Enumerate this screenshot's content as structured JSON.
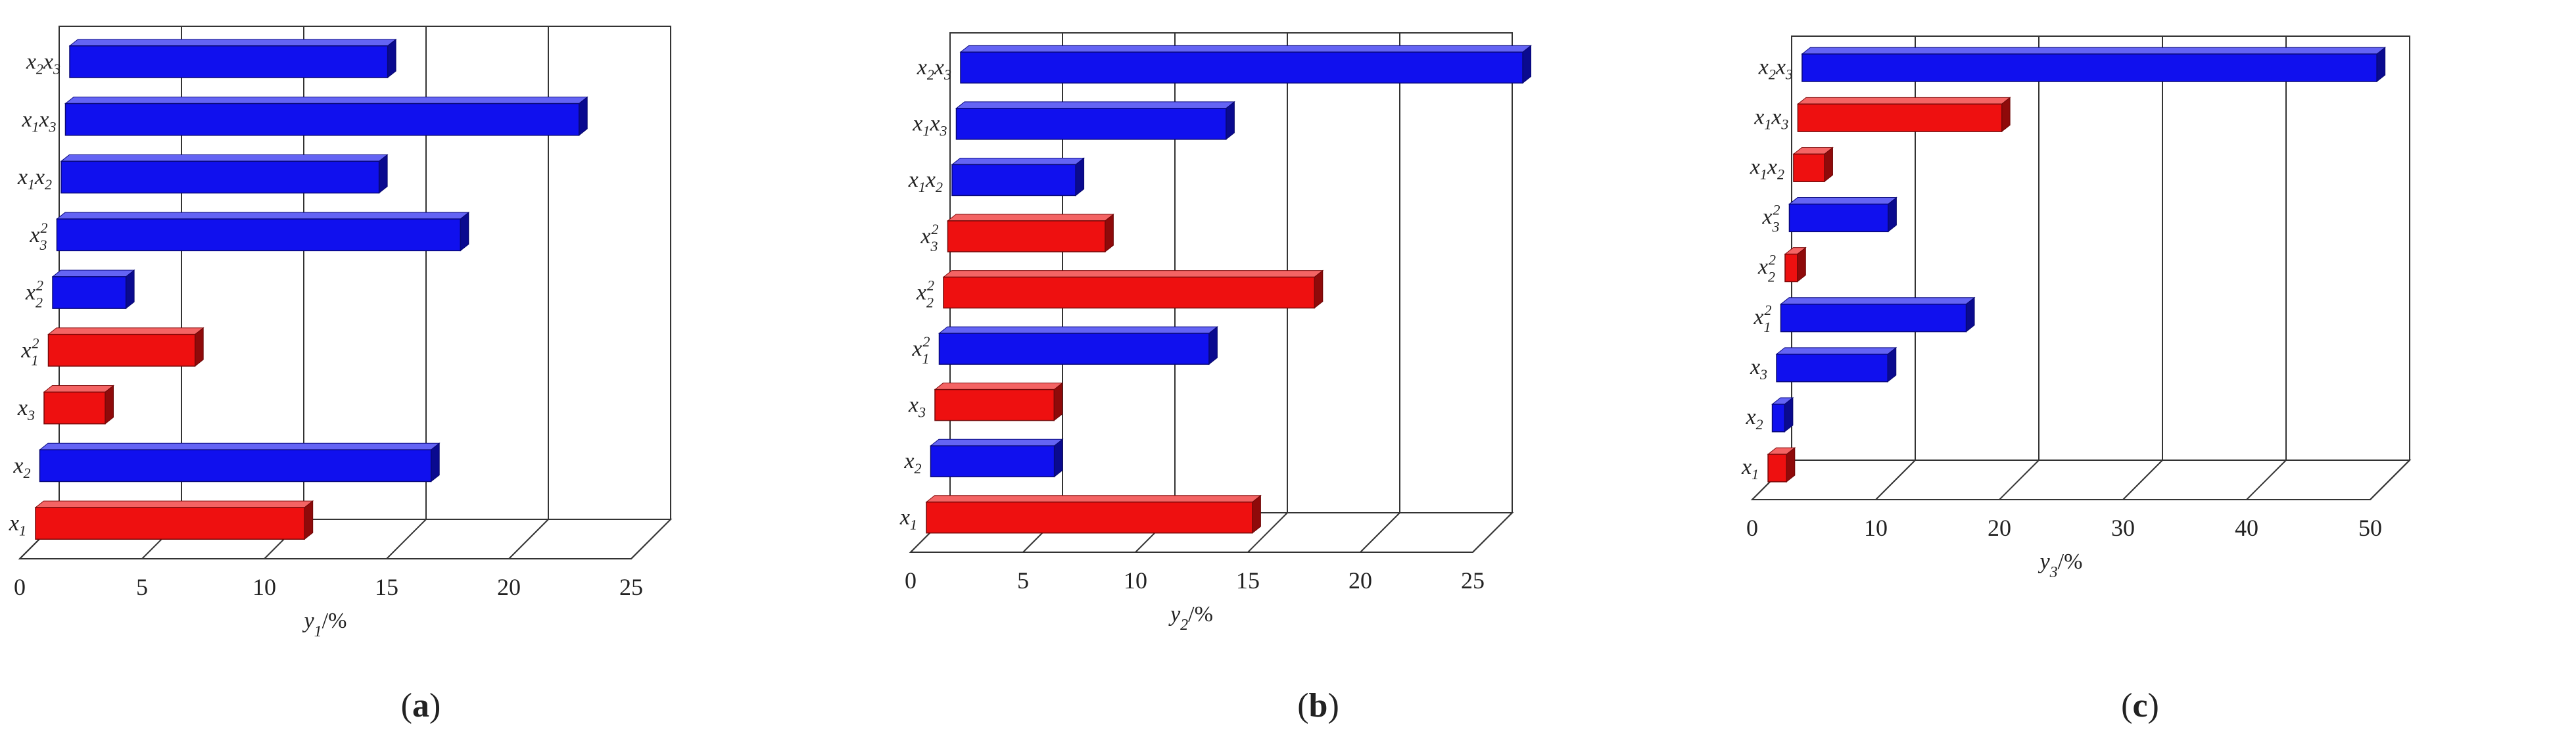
{
  "colors": {
    "blue": "#1010ee",
    "red": "#ee1010"
  },
  "chart_data": [
    {
      "type": "bar",
      "orientation": "horizontal",
      "caption": "(a)",
      "caption_letter": "a",
      "xlabel": "y1/%",
      "xlabel_parts": {
        "var": "y",
        "sub": "1",
        "unit": "/%"
      },
      "xlim": [
        0,
        25
      ],
      "xticks": [
        "0",
        "5",
        "10",
        "15",
        "20",
        "25"
      ],
      "grid": true,
      "categories": [
        {
          "base": "x",
          "sub": "1",
          "sup": "",
          "tail": "",
          "value": 11,
          "color": "red"
        },
        {
          "base": "x",
          "sub": "2",
          "sup": "",
          "tail": "",
          "value": 16,
          "color": "blue"
        },
        {
          "base": "x",
          "sub": "3",
          "sup": "",
          "tail": "",
          "value": 2.5,
          "color": "red"
        },
        {
          "base": "x",
          "sub": "1",
          "sup": "2",
          "tail": "",
          "value": 6,
          "color": "red"
        },
        {
          "base": "x",
          "sub": "2",
          "sup": "2",
          "tail": "",
          "value": 3,
          "color": "blue"
        },
        {
          "base": "x",
          "sub": "3",
          "sup": "2",
          "tail": "",
          "value": 16.5,
          "color": "blue"
        },
        {
          "base": "x",
          "sub": "1",
          "sup": "",
          "tail": "x2",
          "value": 13,
          "color": "blue"
        },
        {
          "base": "x",
          "sub": "1",
          "sup": "",
          "tail": "x3",
          "value": 21,
          "color": "blue"
        },
        {
          "base": "x",
          "sub": "2",
          "sup": "",
          "tail": "x3",
          "value": 13,
          "color": "blue"
        }
      ]
    },
    {
      "type": "bar",
      "orientation": "horizontal",
      "caption": "(b)",
      "caption_letter": "b",
      "xlabel": "y2/%",
      "xlabel_parts": {
        "var": "y",
        "sub": "2",
        "unit": "/%"
      },
      "xlim": [
        0,
        25
      ],
      "xticks": [
        "0",
        "5",
        "10",
        "15",
        "20",
        "25"
      ],
      "grid": true,
      "categories": [
        {
          "base": "x",
          "sub": "1",
          "sup": "",
          "tail": "",
          "value": 14.5,
          "color": "red"
        },
        {
          "base": "x",
          "sub": "2",
          "sup": "",
          "tail": "",
          "value": 5.5,
          "color": "blue"
        },
        {
          "base": "x",
          "sub": "3",
          "sup": "",
          "tail": "",
          "value": 5.3,
          "color": "red"
        },
        {
          "base": "x",
          "sub": "1",
          "sup": "2",
          "tail": "",
          "value": 12,
          "color": "blue"
        },
        {
          "base": "x",
          "sub": "2",
          "sup": "2",
          "tail": "",
          "value": 16.5,
          "color": "red"
        },
        {
          "base": "x",
          "sub": "3",
          "sup": "2",
          "tail": "",
          "value": 7,
          "color": "red"
        },
        {
          "base": "x",
          "sub": "1",
          "sup": "",
          "tail": "x2",
          "value": 5.5,
          "color": "blue"
        },
        {
          "base": "x",
          "sub": "1",
          "sup": "",
          "tail": "x3",
          "value": 12,
          "color": "blue"
        },
        {
          "base": "x",
          "sub": "2",
          "sup": "",
          "tail": "x3",
          "value": 25,
          "color": "blue"
        }
      ]
    },
    {
      "type": "bar",
      "orientation": "horizontal",
      "caption": "(c)",
      "caption_letter": "c",
      "xlabel": "y3/%",
      "xlabel_parts": {
        "var": "y",
        "sub": "3",
        "unit": "/%"
      },
      "xlim": [
        0,
        50
      ],
      "xticks": [
        "0",
        "10",
        "20",
        "30",
        "40",
        "50"
      ],
      "grid": true,
      "categories": [
        {
          "base": "x",
          "sub": "1",
          "sup": "",
          "tail": "",
          "value": 1.5,
          "color": "red"
        },
        {
          "base": "x",
          "sub": "2",
          "sup": "",
          "tail": "",
          "value": 1,
          "color": "blue"
        },
        {
          "base": "x",
          "sub": "3",
          "sup": "",
          "tail": "",
          "value": 9,
          "color": "blue"
        },
        {
          "base": "x",
          "sub": "1",
          "sup": "2",
          "tail": "",
          "value": 15,
          "color": "blue"
        },
        {
          "base": "x",
          "sub": "2",
          "sup": "2",
          "tail": "",
          "value": 1,
          "color": "red"
        },
        {
          "base": "x",
          "sub": "3",
          "sup": "2",
          "tail": "",
          "value": 8,
          "color": "blue"
        },
        {
          "base": "x",
          "sub": "1",
          "sup": "",
          "tail": "x2",
          "value": 2.5,
          "color": "red"
        },
        {
          "base": "x",
          "sub": "1",
          "sup": "",
          "tail": "x3",
          "value": 16.5,
          "color": "red"
        },
        {
          "base": "x",
          "sub": "2",
          "sup": "",
          "tail": "x3",
          "value": 46.5,
          "color": "blue"
        }
      ]
    }
  ]
}
